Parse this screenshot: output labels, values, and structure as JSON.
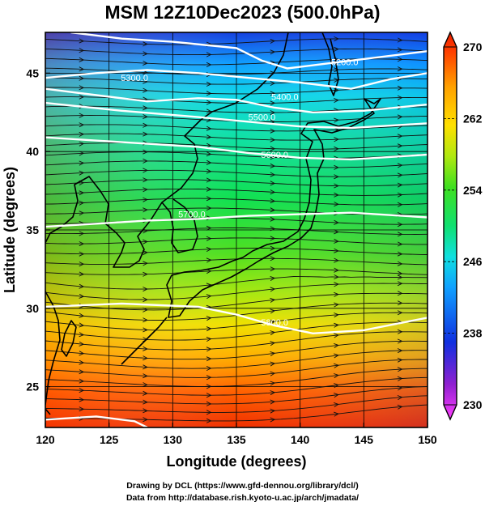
{
  "title": "MSM 12Z10Dec2023 (500.0hPa)",
  "x_axis": {
    "label": "Longitude (degrees)",
    "range": [
      120,
      150
    ],
    "ticks": [
      120,
      125,
      130,
      135,
      140,
      145,
      150
    ],
    "tick_labels": [
      "120",
      "125",
      "130",
      "135",
      "140",
      "145",
      "150"
    ]
  },
  "y_axis": {
    "label": "Latitude  (degrees)",
    "range": [
      22.4,
      47.6
    ],
    "ticks": [
      25,
      30,
      35,
      40,
      45
    ],
    "tick_labels": [
      "25",
      "30",
      "35",
      "40",
      "45"
    ]
  },
  "colorbar": {
    "min": 230,
    "max": 270,
    "tick_labels": [
      "270",
      "262",
      "254",
      "246",
      "238",
      "230"
    ],
    "colors": [
      "#ff40ff",
      "#9020d0",
      "#1030e0",
      "#10a0ff",
      "#10e0e0",
      "#10e070",
      "#40e020",
      "#b0e810",
      "#ffe000",
      "#ffa000",
      "#ff4000",
      "#f02000"
    ]
  },
  "contours": [
    {
      "label": "5200.0",
      "label_lon": 143.5,
      "label_lat": 45.5
    },
    {
      "label": "5300.0",
      "label_lon": 127.0,
      "label_lat": 44.5
    },
    {
      "label": "5400.0",
      "label_lon": 138.8,
      "label_lat": 43.3
    },
    {
      "label": "5500.0",
      "label_lon": 137.0,
      "label_lat": 42.0
    },
    {
      "label": "5600.0",
      "label_lon": 138.0,
      "label_lat": 39.6
    },
    {
      "label": "5700.0",
      "label_lon": 131.5,
      "label_lat": 35.8
    },
    {
      "label": "5800.0",
      "label_lon": 138.0,
      "label_lat": 28.9
    }
  ],
  "credits": {
    "line1": "Drawing by DCL (https://www.gfd-dennou.org/library/dcl/)",
    "line2": "Data from http://database.rish.kyoto-u.ac.jp/arch/jmadata/"
  }
}
